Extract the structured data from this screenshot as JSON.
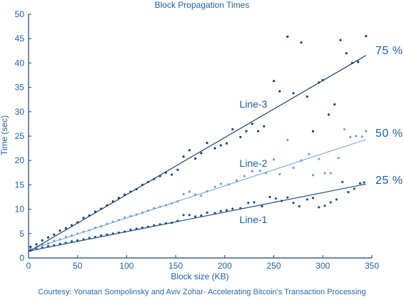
{
  "chart_data": {
    "type": "scatter",
    "title": "Block Propagation Times",
    "xlabel": "Block size (KB)",
    "ylabel": "Time (sec)",
    "xlim": [
      0,
      350
    ],
    "ylim": [
      0,
      50
    ],
    "xticks": [
      "0",
      "50",
      "100",
      "150",
      "200",
      "250",
      "300",
      "350"
    ],
    "yticks": [
      "0",
      "5",
      "10",
      "15",
      "20",
      "25",
      "30",
      "35",
      "40",
      "45",
      "50"
    ],
    "grid": false,
    "series": [
      {
        "name": "Line-1",
        "percentile": "25 %",
        "fit": {
          "intercept": 1.4,
          "slope": 0.04
        },
        "points": [
          [
            2,
            1.5
          ],
          [
            8,
            1.9
          ],
          [
            14,
            2.1
          ],
          [
            20,
            2.4
          ],
          [
            26,
            2.6
          ],
          [
            32,
            2.9
          ],
          [
            38,
            3.1
          ],
          [
            44,
            3.4
          ],
          [
            50,
            3.6
          ],
          [
            56,
            3.8
          ],
          [
            62,
            4.1
          ],
          [
            68,
            4.3
          ],
          [
            74,
            4.6
          ],
          [
            80,
            4.8
          ],
          [
            86,
            5.0
          ],
          [
            92,
            5.2
          ],
          [
            98,
            5.4
          ],
          [
            104,
            5.8
          ],
          [
            110,
            6.0
          ],
          [
            116,
            6.2
          ],
          [
            122,
            6.4
          ],
          [
            128,
            6.7
          ],
          [
            134,
            6.9
          ],
          [
            140,
            7.1
          ],
          [
            146,
            7.2
          ],
          [
            152,
            7.6
          ],
          [
            158,
            8.8
          ],
          [
            164,
            8.8
          ],
          [
            170,
            8.5
          ],
          [
            176,
            8.7
          ],
          [
            182,
            9.3
          ],
          [
            190,
            9.2
          ],
          [
            196,
            9.6
          ],
          [
            202,
            9.8
          ],
          [
            208,
            10.1
          ],
          [
            216,
            10.2
          ],
          [
            224,
            11.3
          ],
          [
            230,
            11.4
          ],
          [
            238,
            10.6
          ],
          [
            246,
            12.5
          ],
          [
            252,
            12.2
          ],
          [
            258,
            11.7
          ],
          [
            264,
            12.4
          ],
          [
            270,
            11.3
          ],
          [
            276,
            10.6
          ],
          [
            284,
            12.0
          ],
          [
            290,
            12.3
          ],
          [
            296,
            10.4
          ],
          [
            302,
            10.7
          ],
          [
            308,
            11.4
          ],
          [
            314,
            12.0
          ],
          [
            320,
            15.6
          ],
          [
            326,
            13.5
          ],
          [
            332,
            14.2
          ],
          [
            338,
            15.3
          ],
          [
            342,
            15.5
          ]
        ]
      },
      {
        "name": "Line-2",
        "percentile": "50 %",
        "fit": {
          "intercept": 1.6,
          "slope": 0.066
        },
        "points": [
          [
            2,
            1.9
          ],
          [
            8,
            2.2
          ],
          [
            14,
            2.7
          ],
          [
            20,
            3.0
          ],
          [
            26,
            3.5
          ],
          [
            32,
            3.8
          ],
          [
            38,
            4.3
          ],
          [
            44,
            4.6
          ],
          [
            50,
            5.0
          ],
          [
            56,
            5.4
          ],
          [
            62,
            5.7
          ],
          [
            68,
            6.2
          ],
          [
            74,
            6.5
          ],
          [
            80,
            7.0
          ],
          [
            86,
            7.4
          ],
          [
            92,
            7.8
          ],
          [
            98,
            8.3
          ],
          [
            104,
            8.6
          ],
          [
            110,
            8.9
          ],
          [
            116,
            9.3
          ],
          [
            122,
            9.7
          ],
          [
            128,
            10.2
          ],
          [
            134,
            10.5
          ],
          [
            140,
            10.8
          ],
          [
            146,
            11.2
          ],
          [
            152,
            11.6
          ],
          [
            158,
            13.1
          ],
          [
            164,
            13.6
          ],
          [
            170,
            13.0
          ],
          [
            176,
            12.8
          ],
          [
            182,
            13.7
          ],
          [
            190,
            14.6
          ],
          [
            196,
            15.2
          ],
          [
            204,
            15.1
          ],
          [
            212,
            15.9
          ],
          [
            220,
            16.8
          ],
          [
            228,
            17.8
          ],
          [
            236,
            17.9
          ],
          [
            242,
            17.4
          ],
          [
            250,
            20.2
          ],
          [
            256,
            17.2
          ],
          [
            264,
            24.2
          ],
          [
            270,
            18.5
          ],
          [
            278,
            20.0
          ],
          [
            286,
            21.3
          ],
          [
            290,
            17.0
          ],
          [
            296,
            20.3
          ],
          [
            302,
            17.4
          ],
          [
            308,
            17.4
          ],
          [
            316,
            20.5
          ],
          [
            322,
            26.4
          ],
          [
            328,
            24.8
          ],
          [
            334,
            25.0
          ],
          [
            340,
            24.9
          ],
          [
            344,
            26.0
          ]
        ]
      },
      {
        "name": "Line-3",
        "percentile": "75 %",
        "fit": {
          "intercept": 1.3,
          "slope": 0.117
        },
        "points": [
          [
            2,
            2.3
          ],
          [
            8,
            2.8
          ],
          [
            14,
            3.6
          ],
          [
            20,
            4.2
          ],
          [
            26,
            4.8
          ],
          [
            32,
            5.6
          ],
          [
            38,
            6.1
          ],
          [
            44,
            6.7
          ],
          [
            50,
            7.3
          ],
          [
            56,
            8.2
          ],
          [
            62,
            8.7
          ],
          [
            68,
            9.5
          ],
          [
            74,
            10.1
          ],
          [
            80,
            10.8
          ],
          [
            86,
            11.6
          ],
          [
            92,
            12.3
          ],
          [
            98,
            13.0
          ],
          [
            104,
            13.6
          ],
          [
            110,
            14.1
          ],
          [
            116,
            15.0
          ],
          [
            122,
            15.6
          ],
          [
            128,
            16.2
          ],
          [
            134,
            16.8
          ],
          [
            140,
            17.5
          ],
          [
            146,
            17.1
          ],
          [
            152,
            18.1
          ],
          [
            158,
            20.8
          ],
          [
            164,
            22.1
          ],
          [
            170,
            20.4
          ],
          [
            176,
            21.5
          ],
          [
            182,
            23.6
          ],
          [
            190,
            22.5
          ],
          [
            196,
            23.1
          ],
          [
            202,
            23.5
          ],
          [
            208,
            26.4
          ],
          [
            216,
            24.8
          ],
          [
            222,
            26.0
          ],
          [
            228,
            27.5
          ],
          [
            234,
            26.0
          ],
          [
            240,
            27.0
          ],
          [
            250,
            36.3
          ],
          [
            256,
            34.2
          ],
          [
            264,
            45.4
          ],
          [
            270,
            33.8
          ],
          [
            278,
            44.2
          ],
          [
            284,
            33.1
          ],
          [
            290,
            26.0
          ],
          [
            296,
            36.0
          ],
          [
            300,
            36.5
          ],
          [
            306,
            29.4
          ],
          [
            312,
            31.5
          ],
          [
            318,
            44.7
          ],
          [
            324,
            42.0
          ],
          [
            330,
            40.0
          ],
          [
            336,
            40.2
          ],
          [
            344,
            45.5
          ]
        ]
      }
    ],
    "caption": "Courtesy: Yonatan Sompolinsky  and Aviv Zohar- Accelerating Bitcoin's Transaction Processing",
    "colors": {
      "line_1": "#1f4f85",
      "line_2": "#6f9fd3",
      "line_3": "#1c3f6e",
      "text": "#1f5fa0",
      "axis": "#1f3f6f"
    }
  }
}
